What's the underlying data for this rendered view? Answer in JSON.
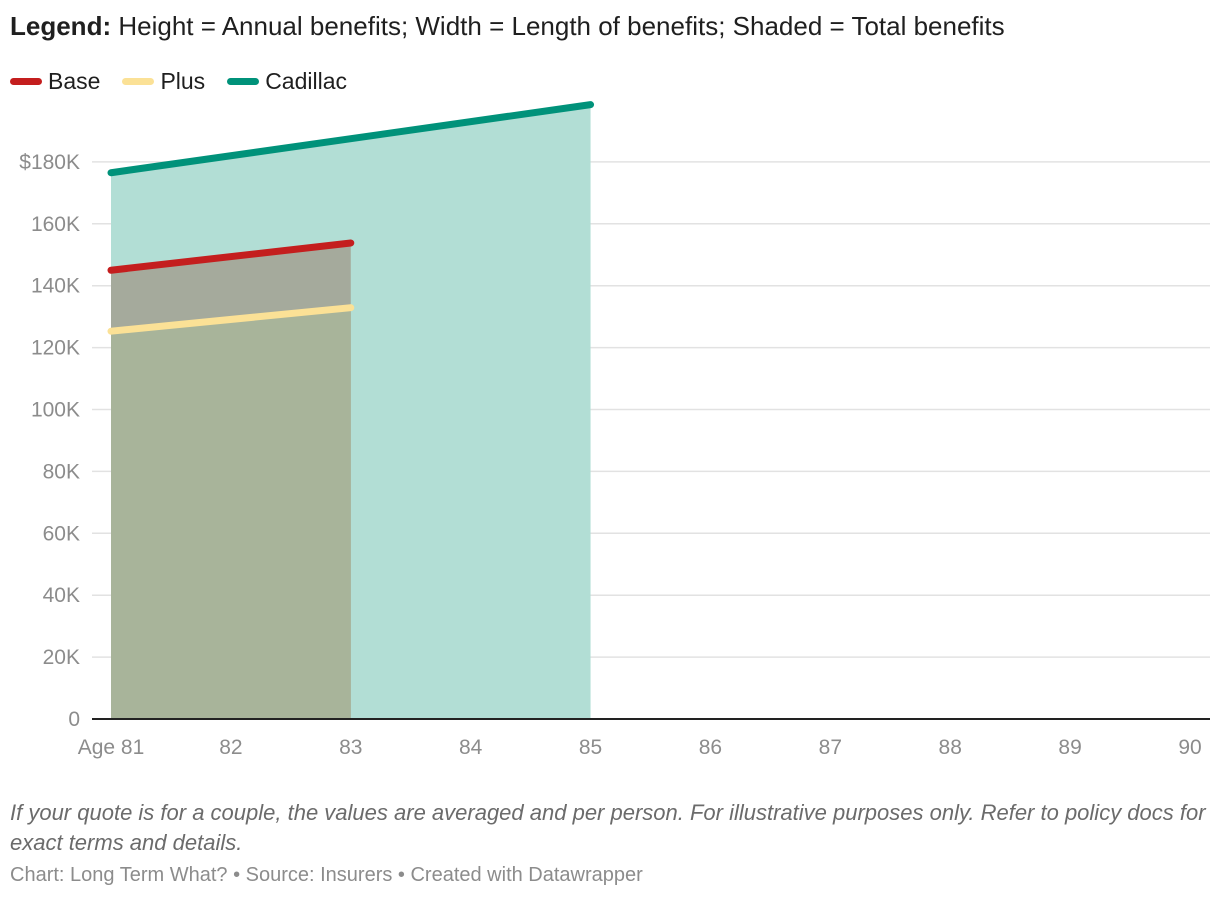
{
  "header": {
    "label": "Legend:",
    "text": "Height = Annual benefits; Width = Length of benefits; Shaded = Total benefits"
  },
  "chart_data": {
    "type": "area",
    "title": "Legend: Height = Annual benefits; Width = Length of benefits; Shaded = Total benefits",
    "xlabel": "",
    "ylabel": "",
    "x_ticks": [
      81,
      82,
      83,
      84,
      85,
      86,
      87,
      88,
      89,
      90
    ],
    "x_tick_labels": [
      "Age 81",
      "82",
      "83",
      "84",
      "85",
      "86",
      "87",
      "88",
      "89",
      "90"
    ],
    "xlim": [
      81,
      90
    ],
    "y_ticks": [
      0,
      20000,
      40000,
      60000,
      80000,
      100000,
      120000,
      140000,
      160000,
      180000
    ],
    "y_tick_labels": [
      "0",
      "20K",
      "40K",
      "60K",
      "80K",
      "100K",
      "120K",
      "140K",
      "160K",
      "$180K"
    ],
    "ylim": [
      0,
      200000
    ],
    "grid": true,
    "legend_position": "top-left",
    "series": [
      {
        "name": "Cadillac",
        "color": "#00927a",
        "fill": "#b2ded5",
        "points": [
          [
            81,
            176500
          ],
          [
            85,
            198500
          ]
        ]
      },
      {
        "name": "Base",
        "color": "#c41e1e",
        "fill": "#a5aa9c",
        "points": [
          [
            81,
            145000
          ],
          [
            83,
            153800
          ]
        ]
      },
      {
        "name": "Plus",
        "color": "#fbe196",
        "fill": "#a8b49a",
        "points": [
          [
            81,
            125300
          ],
          [
            83,
            132900
          ]
        ]
      }
    ]
  },
  "notes": "If your quote is for a couple, the values are averaged and per person. For illustrative purposes only. Refer to policy docs for exact terms and details.",
  "credit": "Chart: Long Term What? • Source: Insurers • Created with Datawrapper"
}
